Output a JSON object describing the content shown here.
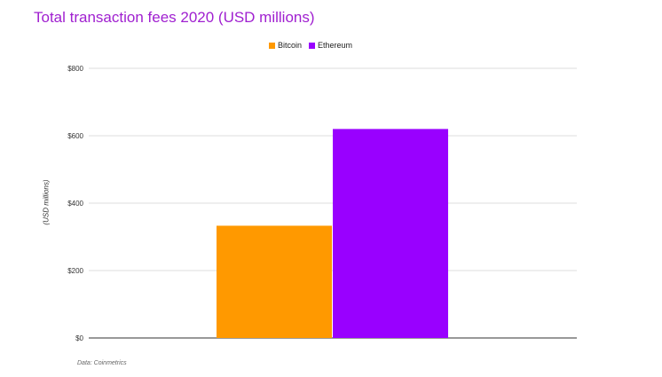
{
  "chart_data": {
    "type": "bar",
    "title": "Total transaction fees 2020 (USD millions)",
    "ylabel": "(USD millions)",
    "xlabel": "",
    "categories": [
      ""
    ],
    "series": [
      {
        "name": "Bitcoin",
        "values": [
          333
        ],
        "color": "#ff9900"
      },
      {
        "name": "Ethereum",
        "values": [
          620
        ],
        "color": "#9900ff"
      }
    ],
    "ylim": [
      0,
      800
    ],
    "yticks": [
      0,
      200,
      400,
      600,
      800
    ],
    "ytick_labels": [
      "$0",
      "$200",
      "$400",
      "$600",
      "$800"
    ],
    "grid": true,
    "legend_position": "top-center",
    "source": "Data: Coinmetrics",
    "title_color": "#a020d0"
  }
}
